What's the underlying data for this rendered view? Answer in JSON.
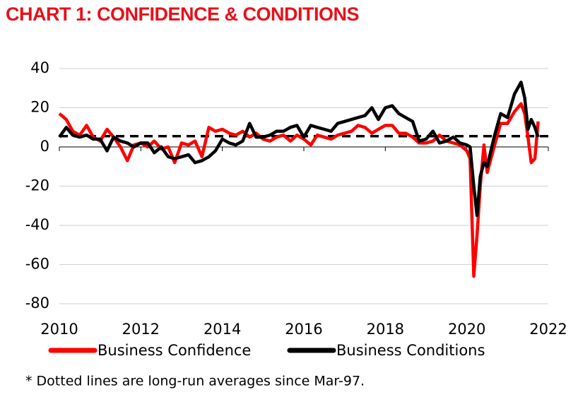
{
  "chart_data": {
    "type": "line",
    "title": "CHART 1: CONFIDENCE & CONDITIONS",
    "note": "* Dotted lines are long-run averages since Mar-97.",
    "x": [
      2010,
      2010.17,
      2010.33,
      2010.5,
      2010.67,
      2010.83,
      2011,
      2011.17,
      2011.33,
      2011.5,
      2011.67,
      2011.83,
      2012,
      2012.17,
      2012.33,
      2012.5,
      2012.67,
      2012.83,
      2013,
      2013.17,
      2013.33,
      2013.5,
      2013.67,
      2013.83,
      2014,
      2014.17,
      2014.33,
      2014.5,
      2014.67,
      2014.83,
      2015,
      2015.17,
      2015.33,
      2015.5,
      2015.67,
      2015.83,
      2016,
      2016.17,
      2016.33,
      2016.5,
      2016.67,
      2016.83,
      2017,
      2017.17,
      2017.33,
      2017.5,
      2017.67,
      2017.83,
      2018,
      2018.17,
      2018.33,
      2018.5,
      2018.67,
      2018.83,
      2019,
      2019.17,
      2019.33,
      2019.5,
      2019.67,
      2019.83,
      2020,
      2020.08,
      2020.17,
      2020.25,
      2020.33,
      2020.42,
      2020.5,
      2020.67,
      2020.83,
      2021,
      2021.17,
      2021.33,
      2021.42,
      2021.5,
      2021.58,
      2021.67,
      2021.75
    ],
    "series": [
      {
        "name": "Business Confidence",
        "color": "#ff0000",
        "values": [
          17,
          14,
          8,
          6,
          11,
          5,
          3,
          9,
          5,
          0,
          -7,
          1,
          2,
          0,
          3,
          -1,
          0,
          -8,
          2,
          1,
          3,
          -5,
          10,
          8,
          9,
          7,
          6,
          8,
          5,
          7,
          4,
          3,
          5,
          6,
          3,
          6,
          4,
          1,
          6,
          5,
          4,
          6,
          7,
          8,
          11,
          10,
          7,
          9,
          11,
          11,
          7,
          7,
          5,
          2,
          2,
          3,
          6,
          3,
          2,
          1,
          -2,
          -6,
          -66,
          -45,
          -20,
          1,
          -13,
          0,
          12,
          12,
          18,
          22,
          17,
          5,
          -8,
          -6,
          13
        ]
      },
      {
        "name": "Business Conditions",
        "color": "#000000",
        "values": [
          5,
          10,
          6,
          5,
          6,
          4,
          4,
          -2,
          5,
          3,
          2,
          0,
          2,
          2,
          -3,
          0,
          -5,
          -6,
          -5,
          -4,
          -8,
          -7,
          -5,
          -2,
          4,
          2,
          1,
          3,
          12,
          5,
          5,
          6,
          8,
          8,
          10,
          11,
          5,
          11,
          10,
          9,
          8,
          12,
          13,
          14,
          15,
          16,
          20,
          14,
          20,
          21,
          17,
          15,
          13,
          3,
          4,
          8,
          2,
          3,
          5,
          2,
          1,
          0,
          -20,
          -35,
          -15,
          -8,
          -10,
          5,
          17,
          15,
          27,
          33,
          25,
          9,
          14,
          10,
          5
        ]
      }
    ],
    "reference_lines": [
      5.5
    ],
    "xlim": [
      2010,
      2022
    ],
    "xticks": [
      2010,
      2012,
      2014,
      2016,
      2018,
      2020,
      2022
    ],
    "ylim": [
      -80,
      40
    ],
    "yticks": [
      -80,
      -60,
      -40,
      -20,
      0,
      20,
      40
    ],
    "grid": true
  }
}
